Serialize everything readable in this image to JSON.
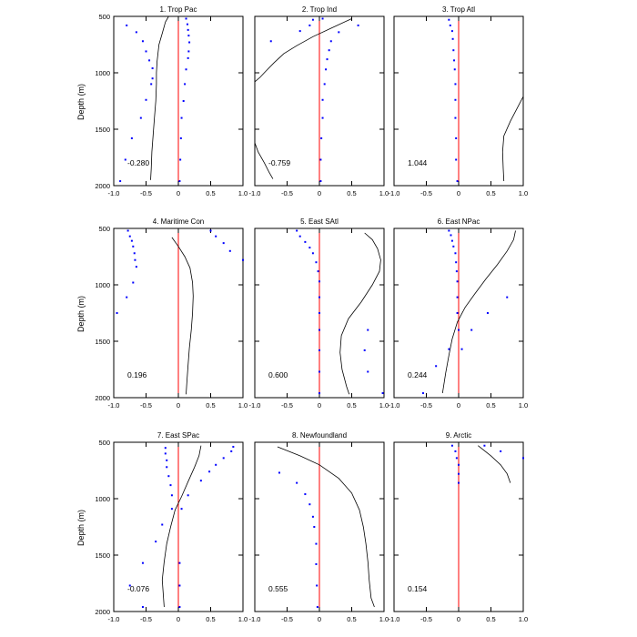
{
  "figure": {
    "ylabel": "Depth (m)"
  },
  "chart_data": [
    {
      "type": "line",
      "title": "1. Trop Pac",
      "xlim": [
        -1.0,
        1.0
      ],
      "ylim": [
        500,
        2000
      ],
      "y_inverted": true,
      "xticks": [
        "-1.0",
        "-0.5",
        "0",
        "0.5",
        "1.0"
      ],
      "yticks": [
        "500",
        "1000",
        "1500",
        "2000"
      ],
      "annotation": "-0.280",
      "zero_line_color": "#ff0000",
      "curve_color": "#000000",
      "dots_color": "#0000ff",
      "curve": [
        [
          -0.15,
          500
        ],
        [
          -0.2,
          550
        ],
        [
          -0.25,
          650
        ],
        [
          -0.3,
          750
        ],
        [
          -0.33,
          900
        ],
        [
          -0.34,
          1000
        ],
        [
          -0.34,
          1100
        ],
        [
          -0.35,
          1250
        ],
        [
          -0.37,
          1400
        ],
        [
          -0.39,
          1550
        ],
        [
          -0.41,
          1700
        ],
        [
          -0.42,
          1850
        ],
        [
          -0.43,
          1950
        ]
      ],
      "dots_left": [
        [
          -0.8,
          580
        ],
        [
          -0.65,
          640
        ],
        [
          -0.55,
          720
        ],
        [
          -0.5,
          810
        ],
        [
          -0.45,
          890
        ],
        [
          -0.4,
          960
        ],
        [
          -0.4,
          1050
        ],
        [
          -0.42,
          1100
        ],
        [
          -0.5,
          1240
        ],
        [
          -0.58,
          1400
        ],
        [
          -0.72,
          1580
        ],
        [
          -0.82,
          1770
        ],
        [
          -0.9,
          1960
        ]
      ],
      "dots_right": [
        [
          0.12,
          520
        ],
        [
          0.14,
          570
        ],
        [
          0.15,
          620
        ],
        [
          0.16,
          670
        ],
        [
          0.17,
          730
        ],
        [
          0.16,
          810
        ],
        [
          0.15,
          870
        ],
        [
          0.12,
          970
        ],
        [
          0.1,
          1100
        ],
        [
          0.08,
          1250
        ],
        [
          0.05,
          1400
        ],
        [
          0.04,
          1580
        ],
        [
          0.03,
          1770
        ],
        [
          0.02,
          1960
        ]
      ]
    },
    {
      "type": "line",
      "title": "2. Trop Ind",
      "xlim": [
        -1.0,
        1.0
      ],
      "ylim": [
        500,
        2000
      ],
      "y_inverted": true,
      "xticks": [
        "-1.0",
        "-0.5",
        "0",
        "0.5",
        "1.0"
      ],
      "yticks": [
        "500",
        "1000",
        "1500",
        "2000"
      ],
      "annotation": "-0.759",
      "zero_line_color": "#ff0000",
      "curve_color": "#000000",
      "dots_color": "#0000ff",
      "curve": [
        [
          0.5,
          520
        ],
        [
          0.2,
          600
        ],
        [
          -0.1,
          680
        ],
        [
          -0.35,
          760
        ],
        [
          -0.55,
          830
        ],
        [
          -0.7,
          910
        ],
        [
          -0.82,
          980
        ],
        [
          -0.92,
          1040
        ],
        [
          -1.0,
          1080
        ]
      ],
      "curve2": [
        [
          -1.0,
          1620
        ],
        [
          -0.95,
          1700
        ],
        [
          -0.85,
          1800
        ],
        [
          -0.78,
          1880
        ],
        [
          -0.72,
          1940
        ]
      ],
      "dots_left": [
        [
          -0.1,
          530
        ],
        [
          -0.15,
          580
        ],
        [
          -0.3,
          630
        ],
        [
          -0.75,
          720
        ]
      ],
      "dots_right": [
        [
          0.05,
          520
        ],
        [
          0.6,
          580
        ],
        [
          0.3,
          640
        ],
        [
          0.18,
          720
        ],
        [
          0.15,
          800
        ],
        [
          0.12,
          880
        ],
        [
          0.1,
          970
        ],
        [
          0.08,
          1100
        ],
        [
          0.05,
          1240
        ],
        [
          0.05,
          1400
        ],
        [
          0.03,
          1580
        ],
        [
          0.02,
          1770
        ],
        [
          0.02,
          1960
        ]
      ]
    },
    {
      "type": "line",
      "title": "3. Trop Atl",
      "xlim": [
        -1.0,
        1.0
      ],
      "ylim": [
        500,
        2000
      ],
      "y_inverted": true,
      "xticks": [
        "-1.0",
        "-0.5",
        "0",
        "0.5",
        "1.0"
      ],
      "yticks": [
        "500",
        "1000",
        "1500",
        "2000"
      ],
      "annotation": "1.044",
      "zero_line_color": "#ff0000",
      "curve_color": "#000000",
      "dots_color": "#0000ff",
      "curve": [
        [
          1.0,
          1210
        ],
        [
          0.9,
          1320
        ],
        [
          0.8,
          1430
        ],
        [
          0.7,
          1560
        ],
        [
          0.68,
          1700
        ],
        [
          0.69,
          1850
        ],
        [
          0.7,
          1960
        ]
      ],
      "dots_left": [
        [
          -0.15,
          530
        ],
        [
          -0.13,
          580
        ],
        [
          -0.1,
          630
        ],
        [
          -0.09,
          700
        ],
        [
          -0.08,
          800
        ],
        [
          -0.07,
          890
        ],
        [
          -0.06,
          970
        ],
        [
          -0.05,
          1100
        ],
        [
          -0.05,
          1240
        ],
        [
          -0.05,
          1400
        ],
        [
          -0.04,
          1580
        ],
        [
          -0.04,
          1770
        ],
        [
          -0.02,
          1960
        ]
      ],
      "dots_right": []
    },
    {
      "type": "line",
      "title": "4. Maritime Con",
      "xlim": [
        -1.0,
        1.0
      ],
      "ylim": [
        500,
        2000
      ],
      "y_inverted": true,
      "xticks": [
        "-1.0",
        "-0.5",
        "0",
        "0.5",
        "1.0"
      ],
      "yticks": [
        "500",
        "1000",
        "1500",
        "2000"
      ],
      "annotation": "0.196",
      "zero_line_color": "#ff0000",
      "curve_color": "#000000",
      "dots_color": "#0000ff",
      "curve": [
        [
          -0.1,
          580
        ],
        [
          0.0,
          660
        ],
        [
          0.1,
          750
        ],
        [
          0.18,
          850
        ],
        [
          0.22,
          980
        ],
        [
          0.23,
          1100
        ],
        [
          0.22,
          1250
        ],
        [
          0.2,
          1400
        ],
        [
          0.17,
          1560
        ],
        [
          0.15,
          1720
        ],
        [
          0.13,
          1880
        ],
        [
          0.12,
          1970
        ]
      ],
      "dots_left": [
        [
          -0.78,
          520
        ],
        [
          -0.75,
          570
        ],
        [
          -0.72,
          610
        ],
        [
          -0.7,
          660
        ],
        [
          -0.68,
          720
        ],
        [
          -0.67,
          780
        ],
        [
          -0.65,
          840
        ],
        [
          -0.7,
          980
        ],
        [
          -0.8,
          1110
        ],
        [
          -0.95,
          1250
        ]
      ],
      "dots_right": [
        [
          0.5,
          520
        ],
        [
          0.58,
          570
        ],
        [
          0.7,
          630
        ],
        [
          0.8,
          700
        ],
        [
          1.0,
          780
        ]
      ]
    },
    {
      "type": "line",
      "title": "5. East SAtl",
      "xlim": [
        -1.0,
        1.0
      ],
      "ylim": [
        500,
        2000
      ],
      "y_inverted": true,
      "xticks": [
        "-1.0",
        "-0.5",
        "0",
        "0.5",
        "1.0"
      ],
      "yticks": [
        "500",
        "1000",
        "1500",
        "2000"
      ],
      "annotation": "0.600",
      "zero_line_color": "#ff0000",
      "curve_color": "#000000",
      "dots_color": "#0000ff",
      "curve": [
        [
          0.7,
          540
        ],
        [
          0.82,
          600
        ],
        [
          0.9,
          680
        ],
        [
          0.95,
          780
        ],
        [
          0.93,
          880
        ],
        [
          0.82,
          1000
        ],
        [
          0.65,
          1150
        ],
        [
          0.45,
          1300
        ],
        [
          0.34,
          1450
        ],
        [
          0.32,
          1600
        ],
        [
          0.35,
          1750
        ],
        [
          0.42,
          1900
        ],
        [
          0.46,
          1970
        ]
      ],
      "dots_left": [
        [
          -0.35,
          520
        ],
        [
          -0.3,
          570
        ],
        [
          -0.22,
          620
        ],
        [
          -0.15,
          670
        ],
        [
          -0.1,
          720
        ],
        [
          -0.05,
          800
        ],
        [
          -0.02,
          880
        ],
        [
          0.0,
          970
        ],
        [
          0.0,
          1110
        ],
        [
          0.0,
          1250
        ],
        [
          0.0,
          1400
        ],
        [
          0.0,
          1580
        ],
        [
          0.0,
          1770
        ],
        [
          0.0,
          1960
        ]
      ],
      "dots_right": [
        [
          0.75,
          1400
        ],
        [
          0.7,
          1580
        ],
        [
          0.75,
          1770
        ],
        [
          0.98,
          1960
        ]
      ]
    },
    {
      "type": "line",
      "title": "6. East NPac",
      "xlim": [
        -1.0,
        1.0
      ],
      "ylim": [
        500,
        2000
      ],
      "y_inverted": true,
      "xticks": [
        "-1.0",
        "-0.5",
        "0",
        "0.5",
        "1.0"
      ],
      "yticks": [
        "500",
        "1000",
        "1500",
        "2000"
      ],
      "annotation": "0.244",
      "zero_line_color": "#ff0000",
      "curve_color": "#000000",
      "dots_color": "#0000ff",
      "curve": [
        [
          0.88,
          520
        ],
        [
          0.85,
          600
        ],
        [
          0.75,
          700
        ],
        [
          0.6,
          820
        ],
        [
          0.42,
          950
        ],
        [
          0.25,
          1080
        ],
        [
          0.1,
          1200
        ],
        [
          -0.02,
          1330
        ],
        [
          -0.1,
          1480
        ],
        [
          -0.15,
          1620
        ],
        [
          -0.2,
          1780
        ],
        [
          -0.25,
          1960
        ]
      ],
      "dots_left": [
        [
          -0.15,
          520
        ],
        [
          -0.12,
          560
        ],
        [
          -0.1,
          610
        ],
        [
          -0.08,
          660
        ],
        [
          -0.05,
          720
        ],
        [
          -0.04,
          800
        ],
        [
          -0.03,
          880
        ],
        [
          -0.02,
          970
        ],
        [
          -0.02,
          1110
        ],
        [
          -0.02,
          1250
        ],
        [
          0.0,
          1400
        ],
        [
          -0.15,
          1570
        ],
        [
          -0.35,
          1720
        ],
        [
          -0.55,
          1960
        ]
      ],
      "dots_right": [
        [
          0.75,
          1110
        ],
        [
          0.45,
          1250
        ],
        [
          0.2,
          1400
        ],
        [
          0.05,
          1570
        ]
      ]
    },
    {
      "type": "line",
      "title": "7. East SPac",
      "xlim": [
        -1.0,
        1.0
      ],
      "ylim": [
        500,
        2000
      ],
      "y_inverted": true,
      "xticks": [
        "-1.0",
        "-0.5",
        "0",
        "0.5",
        "1.0"
      ],
      "yticks": [
        "500",
        "1000",
        "1500",
        "2000"
      ],
      "annotation": "-0.076",
      "zero_line_color": "#ff0000",
      "curve_color": "#000000",
      "dots_color": "#0000ff",
      "curve": [
        [
          0.35,
          530
        ],
        [
          0.32,
          620
        ],
        [
          0.25,
          720
        ],
        [
          0.15,
          850
        ],
        [
          0.05,
          980
        ],
        [
          -0.05,
          1100
        ],
        [
          -0.12,
          1250
        ],
        [
          -0.18,
          1400
        ],
        [
          -0.22,
          1560
        ],
        [
          -0.25,
          1720
        ],
        [
          -0.23,
          1880
        ],
        [
          -0.22,
          1960
        ]
      ],
      "dots_left": [
        [
          -0.2,
          550
        ],
        [
          -0.2,
          600
        ],
        [
          -0.18,
          660
        ],
        [
          -0.18,
          720
        ],
        [
          -0.15,
          800
        ],
        [
          -0.12,
          880
        ],
        [
          -0.1,
          970
        ],
        [
          -0.1,
          1090
        ],
        [
          -0.25,
          1230
        ],
        [
          -0.35,
          1380
        ],
        [
          -0.55,
          1570
        ],
        [
          -0.75,
          1770
        ],
        [
          -0.55,
          1960
        ]
      ],
      "dots_right": [
        [
          0.85,
          540
        ],
        [
          0.82,
          580
        ],
        [
          0.7,
          640
        ],
        [
          0.58,
          700
        ],
        [
          0.48,
          760
        ],
        [
          0.35,
          840
        ],
        [
          0.15,
          970
        ],
        [
          0.05,
          1090
        ],
        [
          0.02,
          1570
        ],
        [
          0.02,
          1770
        ],
        [
          0.02,
          1960
        ]
      ]
    },
    {
      "type": "line",
      "title": "8. Newfoundland",
      "xlim": [
        -1.0,
        1.0
      ],
      "ylim": [
        500,
        2000
      ],
      "y_inverted": true,
      "xticks": [
        "-1.0",
        "-0.5",
        "0",
        "0.5",
        "1.0"
      ],
      "yticks": [
        "500",
        "1000",
        "1500",
        "2000"
      ],
      "annotation": "0.555",
      "zero_line_color": "#ff0000",
      "curve_color": "#000000",
      "dots_color": "#0000ff",
      "curve": [
        [
          -0.65,
          540
        ],
        [
          -0.3,
          620
        ],
        [
          0.0,
          700
        ],
        [
          0.3,
          820
        ],
        [
          0.5,
          950
        ],
        [
          0.62,
          1100
        ],
        [
          0.68,
          1250
        ],
        [
          0.72,
          1400
        ],
        [
          0.75,
          1560
        ],
        [
          0.77,
          1720
        ],
        [
          0.8,
          1880
        ],
        [
          0.85,
          1960
        ]
      ],
      "dots_left": [
        [
          -0.62,
          770
        ],
        [
          -0.35,
          860
        ],
        [
          -0.22,
          960
        ],
        [
          -0.15,
          1050
        ],
        [
          -0.1,
          1160
        ],
        [
          -0.08,
          1250
        ],
        [
          -0.05,
          1400
        ],
        [
          -0.05,
          1580
        ],
        [
          -0.04,
          1770
        ],
        [
          -0.03,
          1960
        ]
      ],
      "dots_right": []
    },
    {
      "type": "line",
      "title": "9. Arctic",
      "xlim": [
        -1.0,
        1.0
      ],
      "ylim": [
        500,
        2000
      ],
      "y_inverted": true,
      "xticks": [
        "-1.0",
        "-0.5",
        "0",
        "0.5",
        "1.0"
      ],
      "yticks": [
        "500",
        "1000",
        "1500",
        "2000"
      ],
      "annotation": "0.154",
      "zero_line_color": "#ff0000",
      "curve_color": "#000000",
      "dots_color": "#0000ff",
      "curve": [
        [
          0.3,
          530
        ],
        [
          0.5,
          620
        ],
        [
          0.65,
          700
        ],
        [
          0.75,
          780
        ],
        [
          0.8,
          860
        ]
      ],
      "dots_left": [
        [
          -0.1,
          530
        ],
        [
          -0.05,
          580
        ],
        [
          -0.03,
          640
        ],
        [
          0.0,
          700
        ],
        [
          0.0,
          780
        ],
        [
          0.0,
          860
        ]
      ],
      "dots_right": [
        [
          0.4,
          530
        ],
        [
          0.65,
          580
        ],
        [
          1.0,
          640
        ]
      ]
    }
  ]
}
